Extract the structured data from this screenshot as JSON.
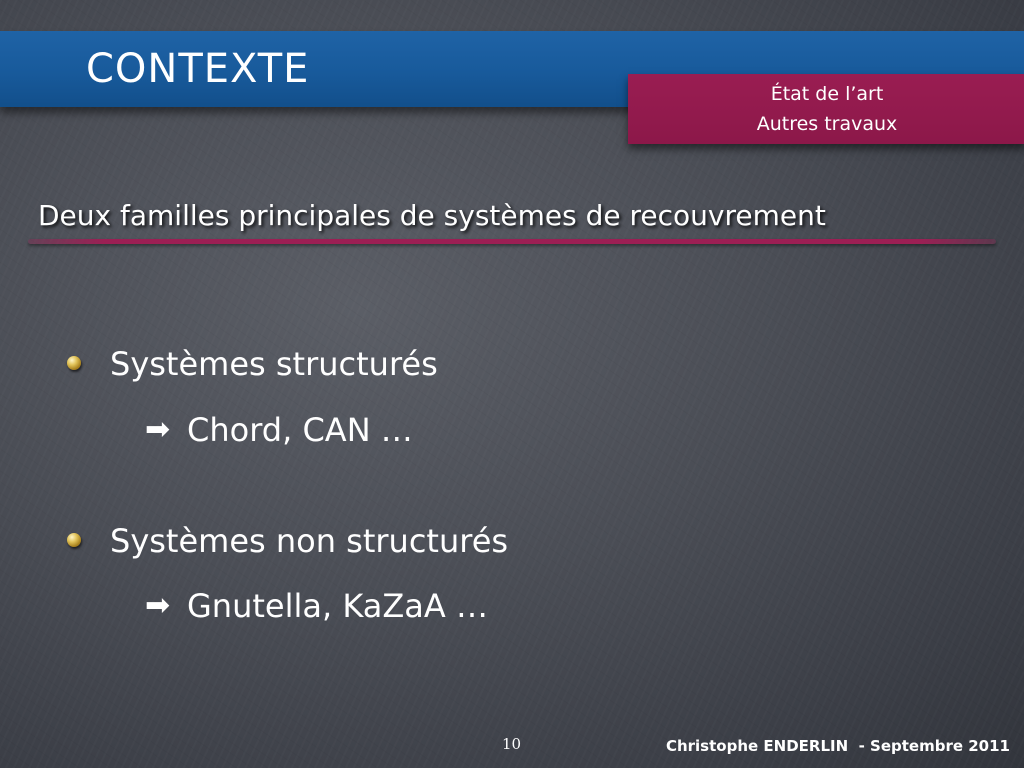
{
  "slide": {
    "title": "CONTEXTE",
    "nav": [
      "État de l’art",
      "Autres travaux"
    ],
    "subtitle": "Deux familles principales de systèmes de recouvrement",
    "bullets": [
      {
        "text": "Systèmes structurés",
        "sub": "Chord, CAN …"
      },
      {
        "text": "Systèmes non structurés",
        "sub": "Gnutella, KaZaA …"
      }
    ],
    "page_number": "10",
    "footer": "Christophe ENDERLIN  - Septembre 2011"
  },
  "icons": {
    "bullet": "gold-ball-bullet-icon",
    "sub_bullet": "right-arrow-icon"
  },
  "colors": {
    "background": "#4a4d55",
    "title_bar": "#185a9b",
    "nav_box": "#8c1849",
    "underline": "#9c1f54",
    "text": "#ffffff"
  }
}
